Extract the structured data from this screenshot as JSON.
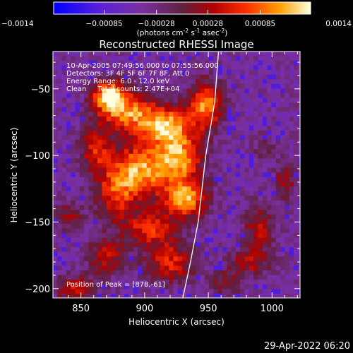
{
  "chart_data": {
    "type": "heatmap",
    "title": "Reconstructed RHESSI Image",
    "xlabel": "Heliocentric X (arcsec)",
    "ylabel": "Heliocentric Y (arcsec)",
    "xlim": [
      828,
      1022
    ],
    "ylim": [
      -207,
      -22
    ],
    "xticks": [
      850,
      900,
      950,
      1000
    ],
    "yticks": [
      -50,
      -100,
      -150,
      -200
    ],
    "colorbar": {
      "range": [
        -0.0014,
        0.0014
      ],
      "ticks": [
        "-0.0014",
        "-0.00085",
        "-0.00028",
        "0.00028",
        "0.00085",
        "0.0014"
      ],
      "ticks_values": [
        -0.0014,
        -0.00085,
        -0.00028,
        0.00028,
        0.00085,
        0.0014
      ],
      "units_prefix": "(photons cm",
      "units_sup1": "-2",
      "units_mid1": " s",
      "units_sup2": "-1",
      "units_mid2": " asec",
      "units_sup3": "-2",
      "units_suffix": ")"
    },
    "annotations": [
      "10-Apr-2005 07:49:56.000 to 07:55:56.000",
      "Detectors: 3F 4F 5F 6F 7F 8F, Att 0",
      "Energy Range: 6.0 - 12.0 keV",
      "Clean     Total counts: 2.47E+04"
    ],
    "peak_label": "Position of Peak = [878,-61]",
    "peak": [
      878,
      -61
    ],
    "limb_curve": [
      [
        958,
        -22
      ],
      [
        955,
        -60
      ],
      [
        948,
        -100
      ],
      [
        942,
        -150
      ],
      [
        936,
        -180
      ],
      [
        930,
        -207
      ]
    ],
    "sources": [
      {
        "x": 872,
        "y": -55,
        "sx": 9,
        "sy": 8,
        "a": 0.95
      },
      {
        "x": 888,
        "y": -68,
        "sx": 15,
        "sy": 10,
        "a": 0.75
      },
      {
        "x": 918,
        "y": -78,
        "sx": 14,
        "sy": 10,
        "a": 0.85
      },
      {
        "x": 948,
        "y": -62,
        "sx": 9,
        "sy": 12,
        "a": 0.8
      },
      {
        "x": 928,
        "y": -102,
        "sx": 12,
        "sy": 12,
        "a": 0.75
      },
      {
        "x": 898,
        "y": -110,
        "sx": 16,
        "sy": 14,
        "a": 0.8
      },
      {
        "x": 932,
        "y": -132,
        "sx": 12,
        "sy": 10,
        "a": 0.85
      },
      {
        "x": 878,
        "y": -128,
        "sx": 12,
        "sy": 14,
        "a": 0.55
      },
      {
        "x": 862,
        "y": -95,
        "sx": 9,
        "sy": 12,
        "a": 0.5
      },
      {
        "x": 905,
        "y": -155,
        "sx": 14,
        "sy": 9,
        "a": 0.6
      },
      {
        "x": 920,
        "y": -180,
        "sx": 13,
        "sy": 10,
        "a": 0.55
      },
      {
        "x": 870,
        "y": -175,
        "sx": 10,
        "sy": 10,
        "a": 0.45
      },
      {
        "x": 845,
        "y": -200,
        "sx": 12,
        "sy": 7,
        "a": 0.45
      },
      {
        "x": 990,
        "y": -155,
        "sx": 8,
        "sy": 12,
        "a": 0.45
      },
      {
        "x": 982,
        "y": -180,
        "sx": 12,
        "sy": 6,
        "a": 0.4
      },
      {
        "x": 1010,
        "y": -120,
        "sx": 6,
        "sy": 10,
        "a": 0.35
      },
      {
        "x": 840,
        "y": -145,
        "sx": 8,
        "sy": 8,
        "a": 0.3
      },
      {
        "x": 965,
        "y": -195,
        "sx": 10,
        "sy": 6,
        "a": 0.3
      },
      {
        "x": 995,
        "y": -95,
        "sx": 7,
        "sy": 7,
        "a": 0.2
      }
    ]
  },
  "footer": {
    "timestamp": "29-Apr-2022 06:20"
  }
}
